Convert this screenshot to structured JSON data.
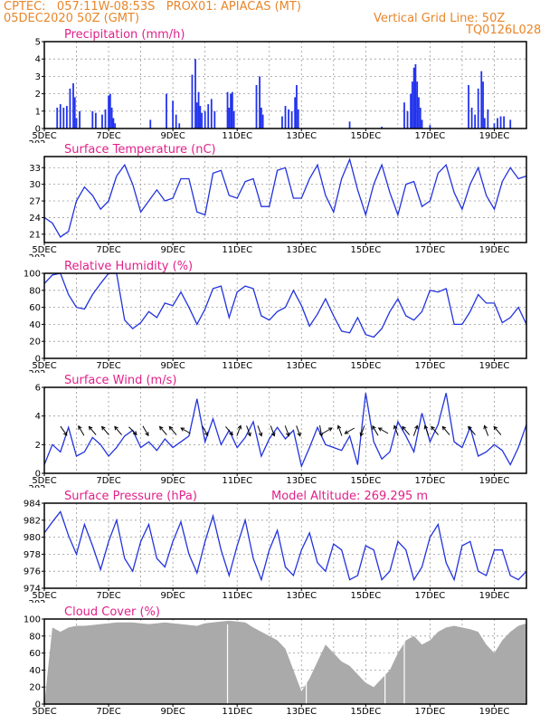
{
  "header": {
    "line1_left": "CPTEC:   057:11W-08:53S   PROX01: APIACAS (MT)",
    "line2_left": "05DEC2020 50Z (GMT)",
    "line2_right": "Vertical Grid Line: 50Z",
    "line3_right": "TQ0126L028"
  },
  "x_tick_labels": [
    "5DEC",
    "7DEC",
    "9DEC",
    "11DEC",
    "13DEC",
    "15DEC",
    "17DEC",
    "19DEC"
  ],
  "year_fragment": "202",
  "colors": {
    "line": "#2233dd",
    "bar": "#2233ee",
    "cloud": "#aaaaaa",
    "title": "#e0218a",
    "header": "#e8862a"
  },
  "chart_data": [
    {
      "type": "bar",
      "title": "Precipitation (mm/h)",
      "ylim": [
        0,
        5
      ],
      "yticks": [
        0,
        1,
        2,
        3,
        4,
        5
      ],
      "days_range": [
        5,
        20
      ],
      "values": [
        [
          5.4,
          1.2
        ],
        [
          5.5,
          1.4
        ],
        [
          5.6,
          1.2
        ],
        [
          5.7,
          1.3
        ],
        [
          5.8,
          2.3
        ],
        [
          5.9,
          2.6
        ],
        [
          5.95,
          1.8
        ],
        [
          6.0,
          0.6
        ],
        [
          6.1,
          1.0
        ],
        [
          6.5,
          1.0
        ],
        [
          6.6,
          0.9
        ],
        [
          6.8,
          0.8
        ],
        [
          6.9,
          1.1
        ],
        [
          7.0,
          1.9
        ],
        [
          7.05,
          2.0
        ],
        [
          7.1,
          1.2
        ],
        [
          7.15,
          0.6
        ],
        [
          7.2,
          0.3
        ],
        [
          8.3,
          0.5
        ],
        [
          8.8,
          2.0
        ],
        [
          9.0,
          1.6
        ],
        [
          9.1,
          0.8
        ],
        [
          9.2,
          0.3
        ],
        [
          9.6,
          3.1
        ],
        [
          9.7,
          4.0
        ],
        [
          9.75,
          1.5
        ],
        [
          9.8,
          2.1
        ],
        [
          9.85,
          1.3
        ],
        [
          9.9,
          0.9
        ],
        [
          10.0,
          1.0
        ],
        [
          10.1,
          1.4
        ],
        [
          10.2,
          1.7
        ],
        [
          10.3,
          1.0
        ],
        [
          10.7,
          2.1
        ],
        [
          10.75,
          1.2
        ],
        [
          10.8,
          2.0
        ],
        [
          10.85,
          2.1
        ],
        [
          10.9,
          1.0
        ],
        [
          11.6,
          2.5
        ],
        [
          11.7,
          3.0
        ],
        [
          11.75,
          1.2
        ],
        [
          11.8,
          0.8
        ],
        [
          12.4,
          0.7
        ],
        [
          12.5,
          1.3
        ],
        [
          12.6,
          1.1
        ],
        [
          12.7,
          1.0
        ],
        [
          12.8,
          1.8
        ],
        [
          12.85,
          2.5
        ],
        [
          12.9,
          1.1
        ],
        [
          14.5,
          0.4
        ],
        [
          15.5,
          0.1
        ],
        [
          16.2,
          1.5
        ],
        [
          16.3,
          1.0
        ],
        [
          16.4,
          2.0
        ],
        [
          16.45,
          2.7
        ],
        [
          16.5,
          3.5
        ],
        [
          16.55,
          3.7
        ],
        [
          16.6,
          2.7
        ],
        [
          16.65,
          1.8
        ],
        [
          16.7,
          1.2
        ],
        [
          16.75,
          0.5
        ],
        [
          17.0,
          0.2
        ],
        [
          18.2,
          2.5
        ],
        [
          18.3,
          1.2
        ],
        [
          18.4,
          0.8
        ],
        [
          18.5,
          2.3
        ],
        [
          18.6,
          3.3
        ],
        [
          18.65,
          2.7
        ],
        [
          18.7,
          0.6
        ],
        [
          18.8,
          1.1
        ],
        [
          19.0,
          0.3
        ],
        [
          19.1,
          0.6
        ],
        [
          19.2,
          0.7
        ],
        [
          19.3,
          0.7
        ],
        [
          19.5,
          0.5
        ]
      ]
    },
    {
      "type": "line",
      "title": "Surface Temperature (nC)",
      "ylim": [
        19.5,
        35
      ],
      "yticks": [
        21,
        24,
        27,
        30,
        33
      ],
      "x_days": [
        5.0,
        5.25,
        5.5,
        5.75,
        6.0,
        6.25,
        6.5,
        6.75,
        7.0,
        7.25,
        7.5,
        7.75,
        8.0,
        8.25,
        8.5,
        8.75,
        9.0,
        9.25,
        9.5,
        9.75,
        10.0,
        10.25,
        10.5,
        10.75,
        11.0,
        11.25,
        11.5,
        11.75,
        12.0,
        12.25,
        12.5,
        12.75,
        13.0,
        13.25,
        13.5,
        13.75,
        14.0,
        14.25,
        14.5,
        14.75,
        15.0,
        15.25,
        15.5,
        15.75,
        16.0,
        16.25,
        16.5,
        16.75,
        17.0,
        17.25,
        17.5,
        17.75,
        18.0,
        18.25,
        18.5,
        18.75,
        19.0,
        19.25,
        19.5,
        19.75,
        20.0
      ],
      "values": [
        24.0,
        23.0,
        20.5,
        21.5,
        27.0,
        29.5,
        28.0,
        25.5,
        27.0,
        31.5,
        33.5,
        30.0,
        25.0,
        27.0,
        29.0,
        27.0,
        27.5,
        31.0,
        31.0,
        25.0,
        24.5,
        32.0,
        32.5,
        28.0,
        27.5,
        30.5,
        31.0,
        26.0,
        26.0,
        32.5,
        33.0,
        27.5,
        27.5,
        31.0,
        33.5,
        28.0,
        25.0,
        31.0,
        34.5,
        29.0,
        24.5,
        30.0,
        33.5,
        28.5,
        24.5,
        30.0,
        30.5,
        26.0,
        27.0,
        32.0,
        33.5,
        28.5,
        25.5,
        30.0,
        33.0,
        28.0,
        25.5,
        30.5,
        33.0,
        31.0,
        31.5
      ]
    },
    {
      "type": "line",
      "title": "Relative Humidity (%)",
      "ylim": [
        0,
        100
      ],
      "yticks": [
        0,
        20,
        40,
        60,
        80,
        100
      ],
      "x_days": [
        5.0,
        5.25,
        5.5,
        5.75,
        6.0,
        6.25,
        6.5,
        6.75,
        7.0,
        7.25,
        7.5,
        7.75,
        8.0,
        8.25,
        8.5,
        8.75,
        9.0,
        9.25,
        9.5,
        9.75,
        10.0,
        10.25,
        10.5,
        10.75,
        11.0,
        11.25,
        11.5,
        11.75,
        12.0,
        12.25,
        12.5,
        12.75,
        13.0,
        13.25,
        13.5,
        13.75,
        14.0,
        14.25,
        14.5,
        14.75,
        15.0,
        15.25,
        15.5,
        15.75,
        16.0,
        16.25,
        16.5,
        16.75,
        17.0,
        17.25,
        17.5,
        17.75,
        18.0,
        18.25,
        18.5,
        18.75,
        19.0,
        19.25,
        19.5,
        19.75,
        20.0
      ],
      "values": [
        88,
        98,
        100,
        75,
        60,
        58,
        75,
        88,
        100,
        100,
        45,
        35,
        42,
        55,
        48,
        65,
        62,
        78,
        60,
        40,
        58,
        82,
        85,
        48,
        78,
        85,
        82,
        50,
        45,
        55,
        60,
        80,
        62,
        38,
        52,
        70,
        50,
        32,
        30,
        48,
        28,
        25,
        35,
        55,
        70,
        50,
        45,
        55,
        80,
        78,
        82,
        40,
        40,
        55,
        75,
        65,
        65,
        42,
        48,
        60,
        40
      ]
    },
    {
      "type": "line",
      "title": "Surface Wind (m/s)",
      "ylim": [
        0,
        6
      ],
      "yticks": [
        0,
        2,
        4,
        6
      ],
      "x_days": [
        5.0,
        5.25,
        5.5,
        5.75,
        6.0,
        6.25,
        6.5,
        6.75,
        7.0,
        7.25,
        7.5,
        7.75,
        8.0,
        8.25,
        8.5,
        8.75,
        9.0,
        9.25,
        9.5,
        9.75,
        10.0,
        10.25,
        10.5,
        10.75,
        11.0,
        11.25,
        11.5,
        11.75,
        12.0,
        12.25,
        12.5,
        12.75,
        13.0,
        13.25,
        13.5,
        13.75,
        14.0,
        14.25,
        14.5,
        14.75,
        15.0,
        15.25,
        15.5,
        15.75,
        16.0,
        16.25,
        16.5,
        16.75,
        17.0,
        17.25,
        17.5,
        17.75,
        18.0,
        18.25,
        18.5,
        18.75,
        19.0,
        19.25,
        19.5,
        19.75,
        20.0
      ],
      "values": [
        0.6,
        2.0,
        1.5,
        3.2,
        1.2,
        1.5,
        2.5,
        2.0,
        1.2,
        1.8,
        2.6,
        3.0,
        1.8,
        2.2,
        1.6,
        2.4,
        1.8,
        2.2,
        2.6,
        5.2,
        2.2,
        3.8,
        2.0,
        3.0,
        1.8,
        2.5,
        3.6,
        1.2,
        2.4,
        3.2,
        2.4,
        3.0,
        0.5,
        1.8,
        3.2,
        2.0,
        1.8,
        1.6,
        2.6,
        0.6,
        5.6,
        2.2,
        1.0,
        1.5,
        3.6,
        2.6,
        1.5,
        4.2,
        2.2,
        3.4,
        5.6,
        2.2,
        1.8,
        3.2,
        1.2,
        1.5,
        2.0,
        1.6,
        0.6,
        1.8,
        3.4
      ],
      "arrows": [
        [
          5.6,
          145
        ],
        [
          6.15,
          330
        ],
        [
          6.5,
          320
        ],
        [
          6.9,
          320
        ],
        [
          7.3,
          320
        ],
        [
          7.75,
          135
        ],
        [
          8.15,
          150
        ],
        [
          8.7,
          320
        ],
        [
          9.0,
          320
        ],
        [
          9.4,
          300
        ],
        [
          10.0,
          150
        ],
        [
          10.75,
          140
        ],
        [
          11.05,
          20
        ],
        [
          11.35,
          160
        ],
        [
          11.7,
          160
        ],
        [
          12.1,
          160
        ],
        [
          12.55,
          160
        ],
        [
          12.9,
          160
        ],
        [
          13.6,
          170
        ],
        [
          13.8,
          60
        ],
        [
          14.2,
          340
        ],
        [
          14.5,
          240
        ],
        [
          14.9,
          200
        ],
        [
          15.3,
          330
        ],
        [
          15.55,
          300
        ],
        [
          15.95,
          340
        ],
        [
          16.25,
          320
        ],
        [
          16.55,
          20
        ],
        [
          16.9,
          340
        ],
        [
          17.15,
          320
        ],
        [
          17.5,
          320
        ],
        [
          18.3,
          320
        ],
        [
          18.75,
          340
        ],
        [
          19.1,
          320
        ]
      ]
    },
    {
      "type": "line",
      "title": "Surface Pressure (hPa)",
      "subtitle": "Model Altitude: 269.295 m",
      "ylim": [
        974,
        984
      ],
      "yticks": [
        974,
        976,
        978,
        980,
        982,
        984
      ],
      "x_days": [
        5.0,
        5.25,
        5.5,
        5.75,
        6.0,
        6.25,
        6.5,
        6.75,
        7.0,
        7.25,
        7.5,
        7.75,
        8.0,
        8.25,
        8.5,
        8.75,
        9.0,
        9.25,
        9.5,
        9.75,
        10.0,
        10.25,
        10.5,
        10.75,
        11.0,
        11.25,
        11.5,
        11.75,
        12.0,
        12.25,
        12.5,
        12.75,
        13.0,
        13.25,
        13.5,
        13.75,
        14.0,
        14.25,
        14.5,
        14.75,
        15.0,
        15.25,
        15.5,
        15.75,
        16.0,
        16.25,
        16.5,
        16.75,
        17.0,
        17.25,
        17.5,
        17.75,
        18.0,
        18.25,
        18.5,
        18.75,
        19.0,
        19.25,
        19.5,
        19.75,
        20.0
      ],
      "values": [
        980.5,
        981.8,
        983.0,
        980.2,
        978.0,
        981.5,
        979.0,
        976.2,
        979.5,
        982.0,
        977.5,
        976.0,
        979.5,
        981.5,
        977.5,
        976.5,
        979.5,
        981.8,
        978.0,
        975.8,
        979.5,
        982.5,
        978.5,
        975.5,
        979.0,
        982.0,
        977.5,
        975.0,
        978.5,
        980.8,
        976.5,
        975.5,
        978.5,
        980.5,
        977.0,
        976.0,
        979.2,
        978.5,
        975.0,
        975.5,
        979.0,
        978.5,
        975.0,
        976.0,
        979.5,
        978.5,
        975.0,
        976.5,
        980.0,
        981.5,
        977.0,
        975.0,
        979.0,
        979.5,
        976.0,
        975.5,
        978.5,
        978.5,
        975.5,
        975.0,
        976.0
      ]
    },
    {
      "type": "area",
      "title": "Cloud Cover (%)",
      "ylim": [
        0,
        100
      ],
      "yticks": [
        0,
        20,
        40,
        60,
        80,
        100
      ],
      "x_days": [
        5.0,
        5.25,
        5.5,
        5.75,
        6.0,
        6.25,
        6.5,
        6.75,
        7.0,
        7.25,
        7.5,
        7.75,
        8.0,
        8.25,
        8.5,
        8.75,
        9.0,
        9.25,
        9.5,
        9.75,
        10.0,
        10.25,
        10.5,
        10.75,
        11.0,
        11.25,
        11.5,
        11.75,
        12.0,
        12.25,
        12.5,
        12.75,
        13.0,
        13.25,
        13.5,
        13.75,
        14.0,
        14.25,
        14.5,
        14.75,
        15.0,
        15.25,
        15.5,
        15.75,
        16.0,
        16.25,
        16.5,
        16.75,
        17.0,
        17.25,
        17.5,
        17.75,
        18.0,
        18.25,
        18.5,
        18.75,
        19.0,
        19.25,
        19.5,
        19.75,
        20.0
      ],
      "values": [
        0,
        90,
        85,
        90,
        92,
        92,
        93,
        94,
        95,
        96,
        96,
        96,
        95,
        94,
        95,
        96,
        95,
        94,
        93,
        92,
        95,
        96,
        97,
        98,
        97,
        96,
        90,
        85,
        80,
        75,
        65,
        40,
        15,
        30,
        50,
        70,
        60,
        50,
        45,
        35,
        25,
        20,
        30,
        40,
        60,
        75,
        80,
        70,
        75,
        85,
        90,
        92,
        90,
        88,
        85,
        70,
        60,
        75,
        85,
        92,
        95
      ]
    }
  ]
}
